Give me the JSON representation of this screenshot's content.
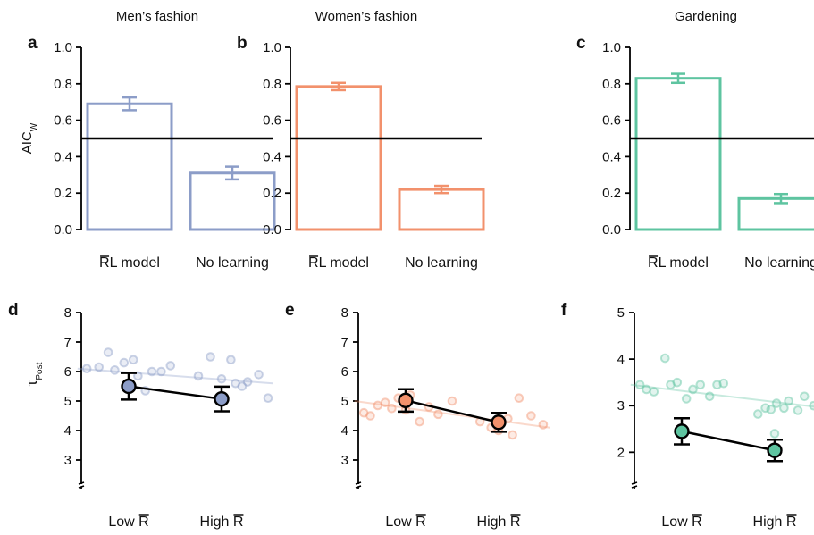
{
  "chart_data": [
    {
      "panel": "a",
      "title": "Men’s fashion",
      "type": "bar",
      "ylabel": "AIC",
      "ylabel_sub": "W",
      "categories": [
        "RL model",
        "No learning"
      ],
      "values": [
        0.69,
        0.31
      ],
      "errors": [
        0.035,
        0.035
      ],
      "ylim": [
        0,
        1
      ],
      "yticks": [
        "0.0",
        "0.2",
        "0.4",
        "0.6",
        "0.8",
        "1.0"
      ],
      "reference_line": 0.5,
      "color": "#8c9dc8"
    },
    {
      "panel": "b",
      "title": "Women’s fashion",
      "type": "bar",
      "ylabel": "",
      "ylabel_sub": "",
      "categories": [
        "RL model",
        "No learning"
      ],
      "values": [
        0.785,
        0.22
      ],
      "errors": [
        0.02,
        0.02
      ],
      "ylim": [
        0,
        1
      ],
      "yticks": [
        "0.0",
        "0.2",
        "0.4",
        "0.6",
        "0.8",
        "1.0"
      ],
      "reference_line": 0.5,
      "color": "#f2916c"
    },
    {
      "panel": "c",
      "title": "Gardening",
      "type": "bar",
      "ylabel": "",
      "ylabel_sub": "",
      "categories": [
        "RL model",
        "No learning"
      ],
      "values": [
        0.83,
        0.17
      ],
      "errors": [
        0.025,
        0.025
      ],
      "ylim": [
        0,
        1
      ],
      "yticks": [
        "0.0",
        "0.2",
        "0.4",
        "0.6",
        "0.8",
        "1.0"
      ],
      "reference_line": 0.5,
      "color": "#5ec4a0"
    },
    {
      "panel": "d",
      "type": "line",
      "ylabel": "τ",
      "ylabel_sub": "Post",
      "categories": [
        "Low R",
        "High R"
      ],
      "means": [
        5.5,
        5.07
      ],
      "errors": [
        0.45,
        0.42
      ],
      "ylim": [
        2,
        8
      ],
      "yticks": [
        3,
        4,
        5,
        6,
        7,
        8
      ],
      "color": "#8c9dc8",
      "trend": {
        "x": [
          -0.55,
          1.55
        ],
        "y": [
          6.1,
          5.6
        ]
      },
      "points": [
        {
          "x": -0.45,
          "y": 6.1
        },
        {
          "x": -0.32,
          "y": 6.15
        },
        {
          "x": -0.22,
          "y": 6.65
        },
        {
          "x": -0.15,
          "y": 6.05
        },
        {
          "x": -0.05,
          "y": 6.3
        },
        {
          "x": 0.05,
          "y": 6.4
        },
        {
          "x": 0.1,
          "y": 5.85
        },
        {
          "x": 0.18,
          "y": 5.35
        },
        {
          "x": 0.25,
          "y": 6.0
        },
        {
          "x": 0.35,
          "y": 6.0
        },
        {
          "x": 0.45,
          "y": 6.2
        },
        {
          "x": 0.75,
          "y": 5.85
        },
        {
          "x": 0.88,
          "y": 6.5
        },
        {
          "x": 1.0,
          "y": 5.75
        },
        {
          "x": 1.1,
          "y": 6.4
        },
        {
          "x": 1.15,
          "y": 5.6
        },
        {
          "x": 1.22,
          "y": 5.5
        },
        {
          "x": 1.28,
          "y": 5.65
        },
        {
          "x": 1.4,
          "y": 5.9
        },
        {
          "x": 1.5,
          "y": 5.1
        }
      ]
    },
    {
      "panel": "e",
      "type": "line",
      "ylabel": "",
      "ylabel_sub": "",
      "categories": [
        "Low R",
        "High R"
      ],
      "means": [
        5.02,
        4.28
      ],
      "errors": [
        0.38,
        0.32
      ],
      "ylim": [
        2,
        8
      ],
      "yticks": [
        3,
        4,
        5,
        6,
        7,
        8
      ],
      "color": "#f2916c",
      "trend": {
        "x": [
          -0.55,
          1.55
        ],
        "y": [
          5.0,
          4.1
        ]
      },
      "points": [
        {
          "x": -0.45,
          "y": 4.6
        },
        {
          "x": -0.38,
          "y": 4.5
        },
        {
          "x": -0.3,
          "y": 4.85
        },
        {
          "x": -0.22,
          "y": 4.95
        },
        {
          "x": -0.15,
          "y": 4.75
        },
        {
          "x": -0.08,
          "y": 5.1
        },
        {
          "x": 0.0,
          "y": 4.7
        },
        {
          "x": 0.05,
          "y": 5.2
        },
        {
          "x": 0.15,
          "y": 4.3
        },
        {
          "x": 0.25,
          "y": 4.8
        },
        {
          "x": 0.35,
          "y": 4.55
        },
        {
          "x": 0.5,
          "y": 5.0
        },
        {
          "x": 0.8,
          "y": 4.3
        },
        {
          "x": 0.92,
          "y": 4.1
        },
        {
          "x": 1.0,
          "y": 4.0
        },
        {
          "x": 1.1,
          "y": 4.4
        },
        {
          "x": 1.15,
          "y": 3.85
        },
        {
          "x": 1.22,
          "y": 5.1
        },
        {
          "x": 1.35,
          "y": 4.5
        },
        {
          "x": 1.48,
          "y": 4.2
        }
      ]
    },
    {
      "panel": "f",
      "type": "line",
      "ylabel": "",
      "ylabel_sub": "",
      "categories": [
        "Low R",
        "High R"
      ],
      "means": [
        2.45,
        2.04
      ],
      "errors": [
        0.28,
        0.23
      ],
      "ylim": [
        1.2,
        5
      ],
      "yticks": [
        2,
        3,
        4,
        5
      ],
      "color": "#5ec4a0",
      "trend": {
        "x": [
          -0.55,
          1.55
        ],
        "y": [
          3.45,
          2.95
        ]
      },
      "points": [
        {
          "x": -0.45,
          "y": 3.45
        },
        {
          "x": -0.38,
          "y": 3.35
        },
        {
          "x": -0.3,
          "y": 3.3
        },
        {
          "x": -0.18,
          "y": 4.02
        },
        {
          "x": -0.12,
          "y": 3.45
        },
        {
          "x": -0.05,
          "y": 3.5
        },
        {
          "x": 0.05,
          "y": 3.15
        },
        {
          "x": 0.12,
          "y": 3.35
        },
        {
          "x": 0.2,
          "y": 3.45
        },
        {
          "x": 0.3,
          "y": 3.2
        },
        {
          "x": 0.38,
          "y": 3.45
        },
        {
          "x": 0.45,
          "y": 3.48
        },
        {
          "x": 0.82,
          "y": 2.82
        },
        {
          "x": 0.9,
          "y": 2.95
        },
        {
          "x": 0.96,
          "y": 2.92
        },
        {
          "x": 1.02,
          "y": 3.05
        },
        {
          "x": 1.1,
          "y": 2.95
        },
        {
          "x": 1.15,
          "y": 3.1
        },
        {
          "x": 1.25,
          "y": 2.9
        },
        {
          "x": 1.32,
          "y": 3.2
        },
        {
          "x": 1.42,
          "y": 3.0
        },
        {
          "x": 1.5,
          "y": 3.05
        },
        {
          "x": 1.0,
          "y": 2.4
        }
      ]
    }
  ]
}
